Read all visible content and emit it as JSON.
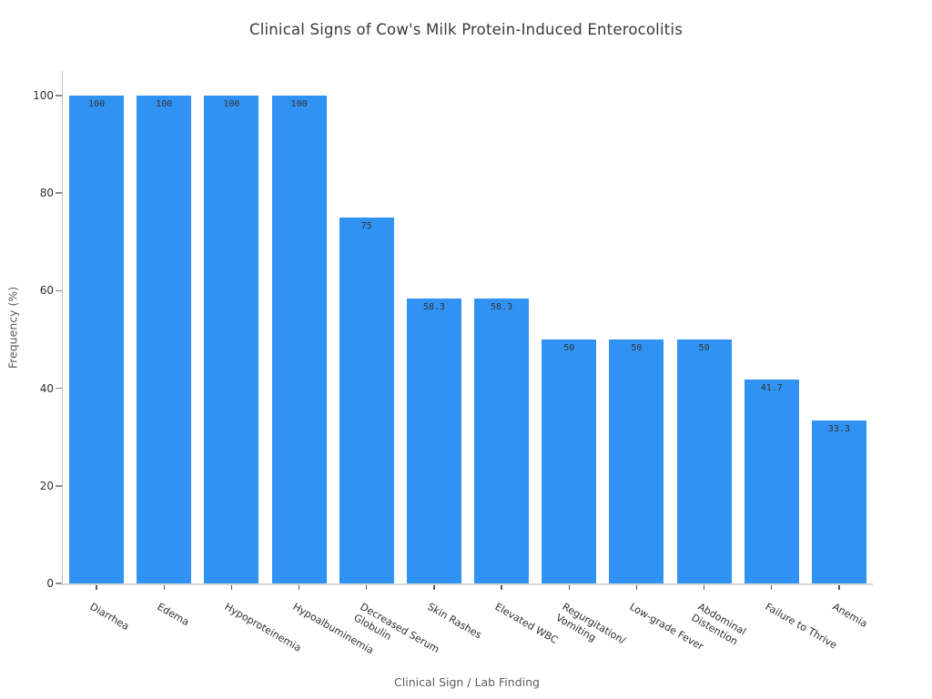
{
  "chart_data": {
    "type": "bar",
    "title": "Clinical Signs of Cow's Milk Protein-Induced Enterocolitis",
    "xlabel": "Clinical Sign / Lab Finding",
    "ylabel": "Frequency (%)",
    "ylim": [
      0,
      105
    ],
    "yticks": [
      0,
      20,
      40,
      60,
      80,
      100
    ],
    "grid": false,
    "legend": null,
    "bar_color": "#3093F3",
    "categories": [
      "Diarrhea",
      "Edema",
      "Hypoproteinemia",
      "Hypoalbuminemia",
      "Decreased Serum\nGlobulin",
      "Skin Rashes",
      "Elevated WBC",
      "Regurgitation/\nVomiting",
      "Low-grade Fever",
      "Abdominal\nDistention",
      "Failure to Thrive",
      "Anemia"
    ],
    "values": [
      100,
      100,
      100,
      100,
      75,
      58.3,
      58.3,
      50,
      50,
      50,
      41.7,
      33.3
    ],
    "value_labels": [
      "100",
      "100",
      "100",
      "100",
      "75",
      "58.3",
      "58.3",
      "50",
      "50",
      "50",
      "41.7",
      "33.3"
    ]
  }
}
